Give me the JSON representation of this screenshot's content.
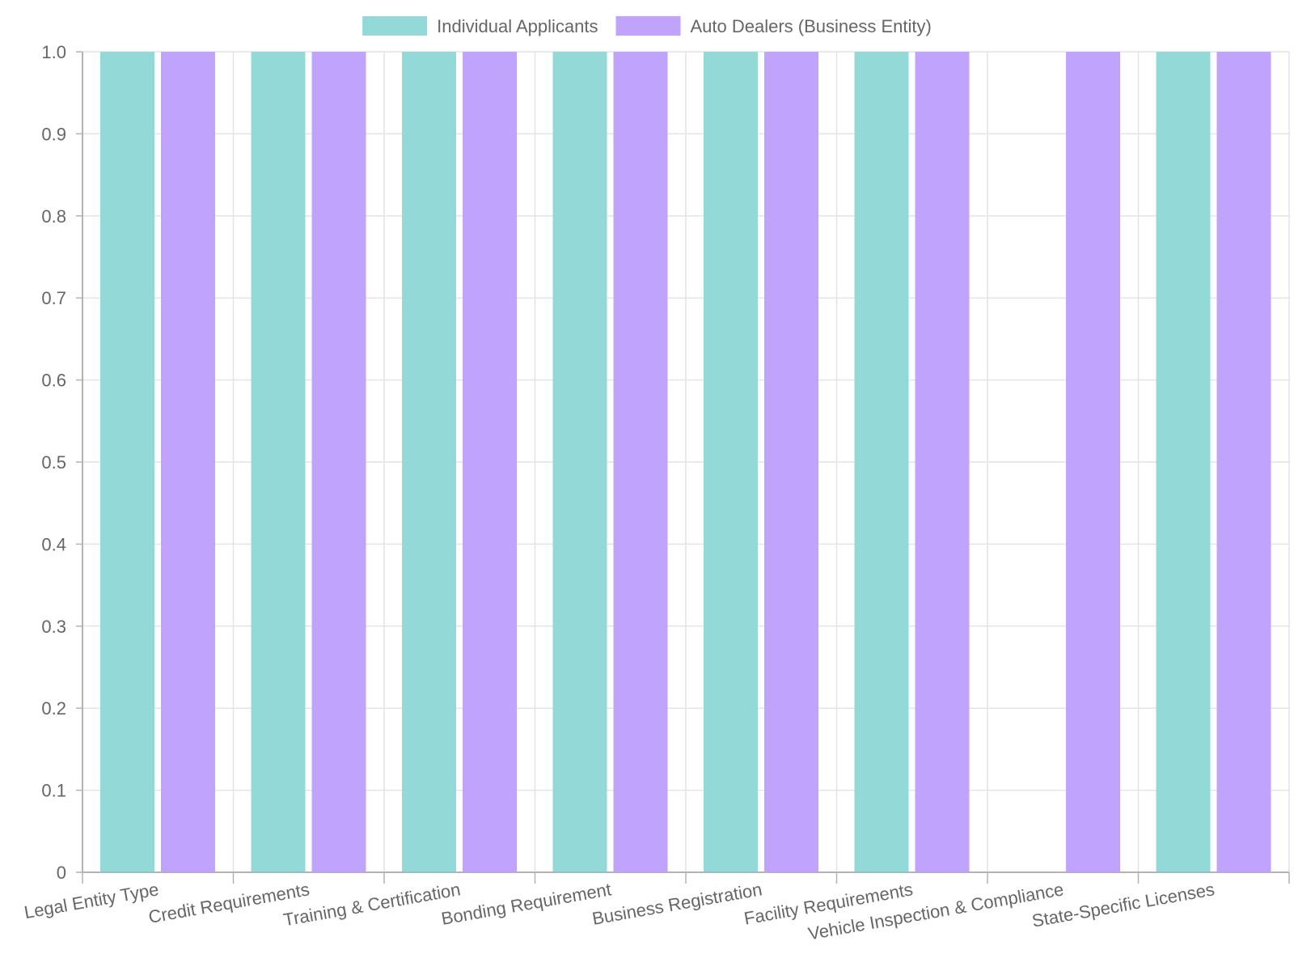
{
  "chart_data": {
    "type": "bar",
    "title": "",
    "xlabel": "",
    "ylabel": "",
    "ylim": [
      0,
      1
    ],
    "yticks": [
      "0",
      "0.1",
      "0.2",
      "0.3",
      "0.4",
      "0.5",
      "0.6",
      "0.7",
      "0.8",
      "0.9",
      "1.0"
    ],
    "grid": true,
    "legend_position": "top-center",
    "categories": [
      "Legal Entity Type",
      "Credit Requirements",
      "Training & Certification",
      "Bonding Requirement",
      "Business Registration",
      "Facility Requirements",
      "Vehicle Inspection & Compliance",
      "State-Specific Licenses"
    ],
    "series": [
      {
        "name": "Individual Applicants",
        "color": "#93d9d8",
        "values": [
          1,
          1,
          1,
          1,
          1,
          1,
          0,
          1
        ]
      },
      {
        "name": "Auto Dealers (Business Entity)",
        "color": "#c0a3fd",
        "values": [
          1,
          1,
          1,
          1,
          1,
          1,
          1,
          1
        ]
      }
    ]
  }
}
